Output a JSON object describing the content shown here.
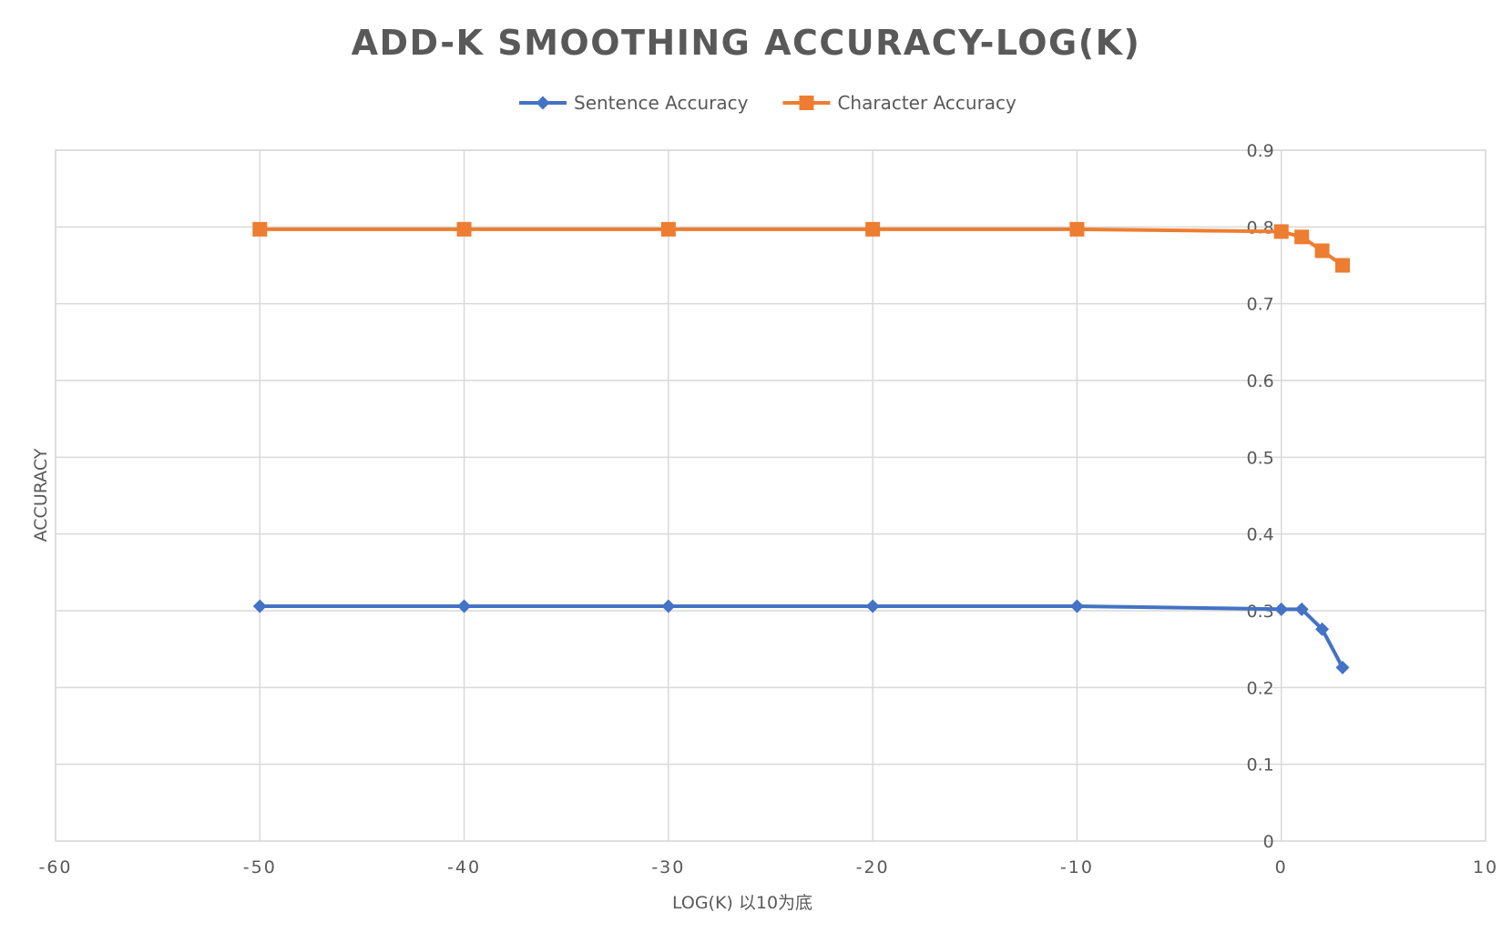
{
  "chart_data": {
    "type": "line",
    "title": "ADD-K SMOOTHING ACCURACY-LOG(K)",
    "xlabel": "LOG(K) 以10为底",
    "ylabel": "ACCURACY",
    "xlim": [
      -60,
      10
    ],
    "ylim": [
      0,
      0.9
    ],
    "xticks": [
      -60,
      -50,
      -40,
      -30,
      -20,
      -10,
      0,
      10
    ],
    "yticks": [
      0,
      0.1,
      0.2,
      0.3,
      0.4,
      0.5,
      0.6,
      0.7,
      0.8,
      0.9
    ],
    "xtick_labels": [
      "-60",
      "-50",
      "-40",
      "-30",
      "-20",
      "-10",
      "0",
      "10"
    ],
    "ytick_labels": [
      "0",
      "0.1",
      "0.2",
      "0.3",
      "0.4",
      "0.5",
      "0.6",
      "0.7",
      "0.8",
      "0.9"
    ],
    "y_axis_position": "x=0",
    "grid": true,
    "legend_position": "top-center",
    "series": [
      {
        "name": "Sentence Accuracy",
        "color": "#4472c4",
        "marker": "diamond",
        "x": [
          -50,
          -40,
          -30,
          -20,
          -10,
          0,
          1,
          2,
          3
        ],
        "y": [
          0.306,
          0.306,
          0.306,
          0.306,
          0.306,
          0.302,
          0.302,
          0.276,
          0.226
        ]
      },
      {
        "name": "Character Accuracy",
        "color": "#ed7d31",
        "marker": "square",
        "x": [
          -50,
          -40,
          -30,
          -20,
          -10,
          0,
          1,
          2,
          3
        ],
        "y": [
          0.797,
          0.797,
          0.797,
          0.797,
          0.797,
          0.794,
          0.787,
          0.769,
          0.75
        ]
      }
    ]
  }
}
